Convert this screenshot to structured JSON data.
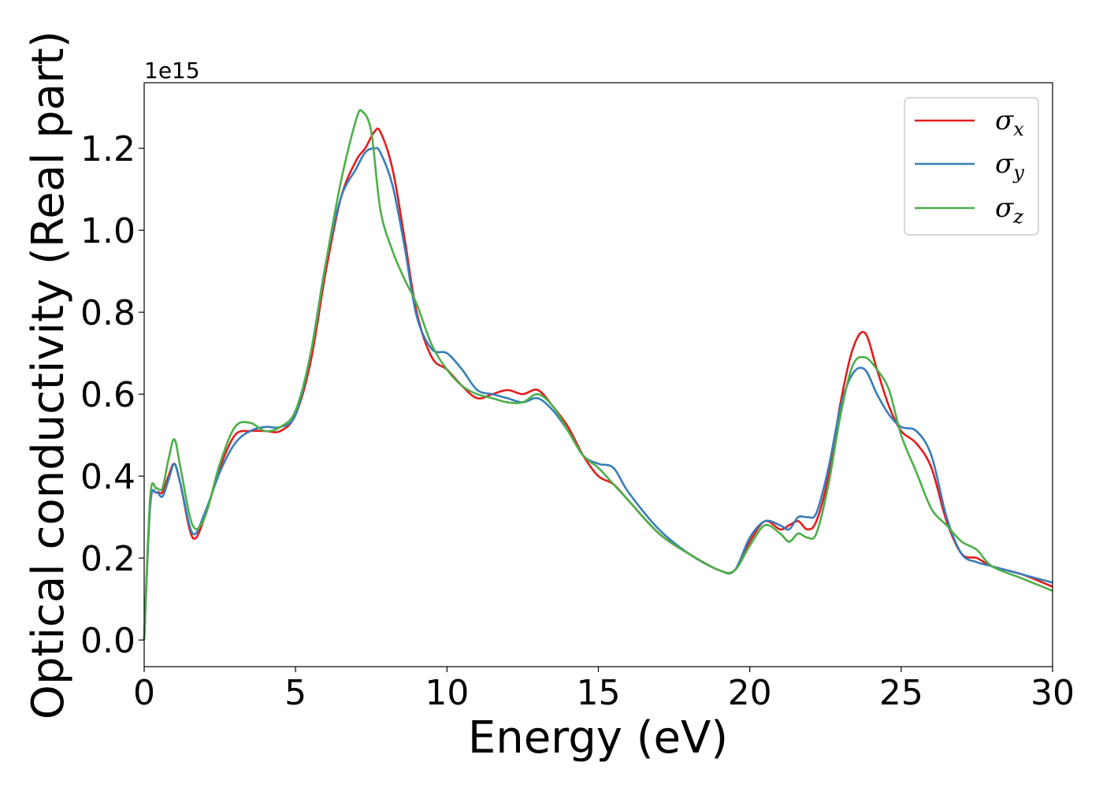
{
  "chart_data": {
    "type": "line",
    "title": "",
    "xlabel": "Energy (eV)",
    "ylabel": "Optical conductivity (Real part)",
    "y_offset_label": "1e15",
    "xlim": [
      0,
      30
    ],
    "ylim": [
      -0.065,
      1.36
    ],
    "x_ticks": [
      0,
      5,
      10,
      15,
      20,
      25,
      30
    ],
    "x_tick_labels": [
      "0",
      "5",
      "10",
      "15",
      "20",
      "25",
      "30"
    ],
    "y_ticks": [
      0.0,
      0.2,
      0.4,
      0.6,
      0.8,
      1.0,
      1.2
    ],
    "y_tick_labels": [
      "0.0",
      "0.2",
      "0.4",
      "0.6",
      "0.8",
      "1.0",
      "1.2"
    ],
    "grid": false,
    "legend_position": "top-right",
    "series": [
      {
        "name": "σx",
        "symbol": "σ",
        "subscript": "x",
        "color": "#e41a1c",
        "x": [
          0.0,
          0.2,
          0.4,
          0.6,
          0.8,
          1.0,
          1.2,
          1.6,
          2.0,
          2.5,
          3.0,
          3.5,
          4.0,
          4.5,
          5.0,
          5.5,
          6.0,
          6.5,
          7.0,
          7.3,
          7.6,
          7.8,
          8.2,
          8.6,
          9.0,
          9.5,
          10.0,
          10.5,
          11.0,
          11.5,
          12.0,
          12.5,
          13.0,
          13.5,
          14.0,
          14.5,
          15.0,
          15.5,
          16.0,
          17.0,
          18.0,
          19.0,
          19.5,
          20.0,
          20.5,
          21.0,
          21.3,
          21.6,
          21.9,
          22.2,
          22.6,
          23.0,
          23.4,
          23.8,
          24.2,
          24.6,
          25.0,
          25.5,
          26.0,
          26.5,
          27.0,
          27.5,
          28.0,
          29.0,
          30.0
        ],
        "y": [
          0.0,
          0.33,
          0.36,
          0.36,
          0.4,
          0.43,
          0.38,
          0.25,
          0.3,
          0.42,
          0.5,
          0.51,
          0.51,
          0.51,
          0.55,
          0.68,
          0.9,
          1.08,
          1.17,
          1.2,
          1.24,
          1.24,
          1.15,
          0.98,
          0.8,
          0.69,
          0.66,
          0.62,
          0.59,
          0.6,
          0.61,
          0.6,
          0.61,
          0.57,
          0.52,
          0.45,
          0.4,
          0.38,
          0.34,
          0.26,
          0.21,
          0.17,
          0.17,
          0.24,
          0.29,
          0.27,
          0.28,
          0.29,
          0.27,
          0.29,
          0.4,
          0.58,
          0.71,
          0.75,
          0.66,
          0.57,
          0.51,
          0.48,
          0.42,
          0.29,
          0.21,
          0.2,
          0.18,
          0.16,
          0.13
        ]
      },
      {
        "name": "σy",
        "symbol": "σ",
        "subscript": "y",
        "color": "#377eb8",
        "x": [
          0.0,
          0.2,
          0.4,
          0.6,
          0.8,
          1.0,
          1.2,
          1.6,
          2.0,
          2.5,
          3.0,
          3.5,
          4.0,
          4.5,
          5.0,
          5.5,
          6.0,
          6.5,
          7.0,
          7.3,
          7.6,
          7.8,
          8.2,
          8.6,
          9.0,
          9.5,
          10.0,
          10.5,
          11.0,
          11.5,
          12.0,
          12.5,
          13.0,
          13.5,
          14.0,
          14.5,
          15.0,
          15.5,
          16.0,
          17.0,
          18.0,
          19.0,
          19.5,
          20.0,
          20.5,
          21.0,
          21.3,
          21.6,
          21.9,
          22.2,
          22.6,
          23.0,
          23.4,
          23.8,
          24.2,
          24.6,
          25.0,
          25.5,
          26.0,
          26.5,
          27.0,
          27.5,
          28.0,
          29.0,
          30.0
        ],
        "y": [
          0.0,
          0.33,
          0.36,
          0.35,
          0.39,
          0.43,
          0.38,
          0.26,
          0.31,
          0.41,
          0.48,
          0.51,
          0.52,
          0.52,
          0.55,
          0.7,
          0.92,
          1.08,
          1.15,
          1.19,
          1.2,
          1.19,
          1.11,
          0.96,
          0.79,
          0.71,
          0.7,
          0.66,
          0.61,
          0.6,
          0.59,
          0.58,
          0.59,
          0.56,
          0.51,
          0.45,
          0.43,
          0.42,
          0.36,
          0.27,
          0.21,
          0.17,
          0.17,
          0.25,
          0.29,
          0.28,
          0.27,
          0.3,
          0.3,
          0.31,
          0.42,
          0.57,
          0.65,
          0.66,
          0.6,
          0.55,
          0.52,
          0.51,
          0.45,
          0.3,
          0.21,
          0.19,
          0.18,
          0.16,
          0.14
        ]
      },
      {
        "name": "σz",
        "symbol": "σ",
        "subscript": "z",
        "color": "#4daf4a",
        "x": [
          0.0,
          0.2,
          0.4,
          0.6,
          0.8,
          1.0,
          1.2,
          1.6,
          2.0,
          2.5,
          3.0,
          3.5,
          4.0,
          4.5,
          5.0,
          5.5,
          6.0,
          6.5,
          7.0,
          7.2,
          7.5,
          7.8,
          8.2,
          8.6,
          9.0,
          9.5,
          10.0,
          10.5,
          11.0,
          11.5,
          12.0,
          12.5,
          13.0,
          13.5,
          14.0,
          14.5,
          15.0,
          15.5,
          16.0,
          17.0,
          18.0,
          19.0,
          19.5,
          20.0,
          20.5,
          21.0,
          21.3,
          21.6,
          21.9,
          22.2,
          22.6,
          23.0,
          23.4,
          23.8,
          24.2,
          24.6,
          25.0,
          25.5,
          26.0,
          26.5,
          27.0,
          27.5,
          28.0,
          29.0,
          30.0
        ],
        "y": [
          0.0,
          0.35,
          0.37,
          0.37,
          0.44,
          0.49,
          0.42,
          0.28,
          0.3,
          0.43,
          0.52,
          0.53,
          0.51,
          0.52,
          0.56,
          0.7,
          0.92,
          1.12,
          1.27,
          1.29,
          1.24,
          1.05,
          0.95,
          0.88,
          0.82,
          0.72,
          0.66,
          0.62,
          0.6,
          0.59,
          0.58,
          0.58,
          0.6,
          0.57,
          0.51,
          0.45,
          0.42,
          0.38,
          0.34,
          0.26,
          0.21,
          0.17,
          0.17,
          0.23,
          0.28,
          0.26,
          0.24,
          0.26,
          0.25,
          0.26,
          0.38,
          0.55,
          0.67,
          0.69,
          0.66,
          0.61,
          0.5,
          0.41,
          0.32,
          0.28,
          0.24,
          0.22,
          0.18,
          0.15,
          0.12
        ]
      }
    ]
  }
}
